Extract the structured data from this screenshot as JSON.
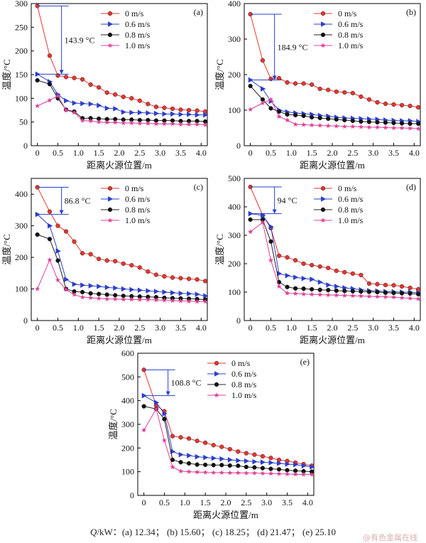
{
  "series_names": [
    "0 m/s",
    "0.6 m/s",
    "0.8 m/s",
    "1.0 m/s"
  ],
  "series_colors": [
    "#e8352f",
    "#2a3fc9",
    "#111111",
    "#e0409a"
  ],
  "series_markers": [
    "circle",
    "triangle",
    "circle",
    "star"
  ],
  "axis_labels": {
    "x": "距离火源位置/m",
    "y": "温度/°C"
  },
  "caption": {
    "q_symbol": "Q",
    "unit_prefix": "/kW：",
    "items": [
      "(a) 12.34；",
      "(b) 15.60；",
      "(c) 18.25；",
      "(d) 21.47；",
      "(e) 25.10"
    ]
  },
  "watermark": "@有色金属在线",
  "x_ticks": [
    0,
    0.5,
    1.0,
    1.5,
    2.0,
    2.5,
    3.0,
    3.5,
    4.0
  ],
  "x_tick_labels": [
    "0",
    "0.5",
    "1.0",
    "1.5",
    "2.0",
    "2.5",
    "3.0",
    "3.5",
    "4.0"
  ],
  "chart_data": [
    {
      "type": "line",
      "id": "a",
      "panel_label": "(a)",
      "annotation": "143.9 °C",
      "annotation_from": 295,
      "annotation_to": 151,
      "ylim": [
        0,
        300
      ],
      "yticks": [
        0,
        50,
        100,
        150,
        200,
        250,
        300
      ],
      "xlim": [
        -0.15,
        4.15
      ],
      "xlabel": "距离火源位置/m",
      "ylabel": "温度/°C",
      "x": [
        0,
        0.3,
        0.5,
        0.7,
        0.9,
        1.1,
        1.3,
        1.5,
        1.7,
        1.9,
        2.1,
        2.3,
        2.5,
        2.7,
        2.9,
        3.1,
        3.3,
        3.5,
        3.7,
        3.9,
        4.1
      ],
      "series": [
        {
          "name": "0 m/s",
          "values": [
            295,
            190,
            148,
            145,
            143,
            140,
            129,
            123,
            112,
            108,
            103,
            100,
            95,
            88,
            82,
            80,
            78,
            76,
            75,
            74,
            72
          ]
        },
        {
          "name": "0.6 m/s",
          "values": [
            151,
            135,
            108,
            95,
            90,
            89,
            88,
            85,
            79,
            78,
            71,
            70,
            70,
            69,
            68,
            67,
            67,
            66,
            66,
            65,
            65
          ]
        },
        {
          "name": "0.8 m/s",
          "values": [
            138,
            130,
            100,
            76,
            72,
            58,
            58,
            57,
            56,
            56,
            55,
            55,
            54,
            54,
            53,
            53,
            53,
            52,
            52,
            52,
            51
          ]
        },
        {
          "name": "1.0 m/s",
          "values": [
            84,
            96,
            105,
            75,
            70,
            53,
            52,
            50,
            49,
            49,
            48,
            48,
            47,
            47,
            46,
            46,
            46,
            45,
            45,
            45,
            44
          ]
        }
      ]
    },
    {
      "type": "line",
      "id": "b",
      "panel_label": "(b)",
      "annotation": "184.9 °C",
      "annotation_from": 370,
      "annotation_to": 185,
      "ylim": [
        0,
        400
      ],
      "yticks": [
        0,
        100,
        200,
        300,
        400
      ],
      "xlim": [
        -0.15,
        4.15
      ],
      "xlabel": "距离火源位置/m",
      "ylabel": "温度/°C",
      "x": [
        0,
        0.3,
        0.5,
        0.7,
        0.9,
        1.1,
        1.3,
        1.5,
        1.7,
        1.9,
        2.1,
        2.3,
        2.5,
        2.7,
        2.9,
        3.1,
        3.3,
        3.5,
        3.7,
        3.9,
        4.1
      ],
      "series": [
        {
          "name": "0 m/s",
          "values": [
            370,
            240,
            188,
            190,
            178,
            175,
            175,
            172,
            160,
            157,
            152,
            150,
            148,
            138,
            130,
            122,
            118,
            116,
            114,
            112,
            108
          ]
        },
        {
          "name": "0.6 m/s",
          "values": [
            185,
            160,
            125,
            100,
            95,
            92,
            90,
            88,
            85,
            83,
            80,
            78,
            77,
            76,
            75,
            74,
            72,
            71,
            70,
            70,
            68
          ]
        },
        {
          "name": "0.8 m/s",
          "values": [
            168,
            130,
            105,
            96,
            88,
            86,
            84,
            80,
            78,
            76,
            74,
            72,
            70,
            68,
            67,
            66,
            65,
            64,
            63,
            62,
            62
          ]
        },
        {
          "name": "1.0 m/s",
          "values": [
            102,
            120,
            130,
            82,
            72,
            60,
            59,
            58,
            57,
            56,
            55,
            54,
            54,
            53,
            52,
            52,
            51,
            50,
            50,
            49,
            48
          ]
        }
      ]
    },
    {
      "type": "line",
      "id": "c",
      "panel_label": "(c)",
      "annotation": "86.8 °C",
      "annotation_from": 422,
      "annotation_to": 336,
      "ylim": [
        0,
        450
      ],
      "yticks": [
        0,
        100,
        200,
        300,
        400
      ],
      "xlim": [
        -0.15,
        4.15
      ],
      "xlabel": "距离火源位置/m",
      "ylabel": "温度/°C",
      "x": [
        0,
        0.3,
        0.5,
        0.7,
        0.9,
        1.1,
        1.3,
        1.5,
        1.7,
        1.9,
        2.1,
        2.3,
        2.5,
        2.7,
        2.9,
        3.1,
        3.3,
        3.5,
        3.7,
        3.9,
        4.1
      ],
      "series": [
        {
          "name": "0 m/s",
          "values": [
            422,
            345,
            300,
            282,
            250,
            213,
            210,
            195,
            190,
            188,
            180,
            175,
            168,
            155,
            145,
            140,
            136,
            134,
            132,
            130,
            125
          ]
        },
        {
          "name": "0.6 m/s",
          "values": [
            336,
            300,
            220,
            130,
            115,
            112,
            110,
            108,
            105,
            103,
            100,
            98,
            96,
            94,
            92,
            90,
            88,
            86,
            85,
            83,
            78
          ]
        },
        {
          "name": "0.8 m/s",
          "values": [
            272,
            258,
            190,
            100,
            92,
            90,
            86,
            84,
            82,
            80,
            78,
            77,
            76,
            75,
            74,
            72,
            71,
            70,
            69,
            68,
            66
          ]
        },
        {
          "name": "1.0 m/s",
          "values": [
            100,
            192,
            128,
            98,
            82,
            74,
            72,
            70,
            68,
            68,
            67,
            67,
            66,
            66,
            65,
            64,
            63,
            62,
            61,
            60,
            60
          ]
        }
      ]
    },
    {
      "type": "line",
      "id": "d",
      "panel_label": "(d)",
      "annotation": "94 °C",
      "annotation_from": 470,
      "annotation_to": 376,
      "ylim": [
        0,
        500
      ],
      "yticks": [
        0,
        100,
        200,
        300,
        400,
        500
      ],
      "xlim": [
        -0.15,
        4.15
      ],
      "xlabel": "距离火源位置/m",
      "ylabel": "温度/°C",
      "x": [
        0,
        0.3,
        0.5,
        0.7,
        0.9,
        1.1,
        1.3,
        1.5,
        1.7,
        1.9,
        2.1,
        2.3,
        2.5,
        2.7,
        2.9,
        3.1,
        3.3,
        3.5,
        3.7,
        3.9,
        4.1
      ],
      "series": [
        {
          "name": "0 m/s",
          "values": [
            470,
            370,
            325,
            228,
            222,
            212,
            200,
            195,
            190,
            185,
            175,
            170,
            165,
            160,
            130,
            128,
            125,
            124,
            120,
            115,
            110
          ]
        },
        {
          "name": "0.6 m/s",
          "values": [
            376,
            370,
            330,
            165,
            158,
            152,
            148,
            145,
            135,
            125,
            120,
            115,
            112,
            108,
            105,
            104,
            102,
            101,
            100,
            100,
            98
          ]
        },
        {
          "name": "0.8 m/s",
          "values": [
            355,
            355,
            278,
            135,
            118,
            113,
            112,
            110,
            108,
            107,
            105,
            104,
            103,
            102,
            101,
            100,
            98,
            97,
            96,
            95,
            93
          ]
        },
        {
          "name": "1.0 m/s",
          "values": [
            312,
            345,
            212,
            120,
            96,
            95,
            93,
            92,
            91,
            90,
            89,
            88,
            87,
            86,
            85,
            84,
            83,
            82,
            80,
            78,
            76
          ]
        }
      ]
    },
    {
      "type": "line",
      "id": "e",
      "panel_label": "(e)",
      "annotation": "108.8 °C",
      "annotation_from": 530,
      "annotation_to": 421,
      "ylim": [
        0,
        600
      ],
      "yticks": [
        0,
        100,
        200,
        300,
        400,
        500,
        600
      ],
      "xlim": [
        -0.15,
        4.15
      ],
      "xlabel": "距离火源位置/m",
      "ylabel": "温度/°C",
      "x": [
        0,
        0.3,
        0.5,
        0.7,
        0.9,
        1.1,
        1.3,
        1.5,
        1.7,
        1.9,
        2.1,
        2.3,
        2.5,
        2.7,
        2.9,
        3.1,
        3.3,
        3.5,
        3.7,
        3.9,
        4.1
      ],
      "series": [
        {
          "name": "0 m/s",
          "values": [
            530,
            380,
            355,
            250,
            245,
            240,
            230,
            222,
            212,
            205,
            195,
            185,
            178,
            172,
            165,
            158,
            150,
            145,
            138,
            132,
            125
          ]
        },
        {
          "name": "0.6 m/s",
          "values": [
            421,
            392,
            345,
            185,
            172,
            168,
            163,
            160,
            157,
            154,
            150,
            147,
            145,
            142,
            140,
            138,
            135,
            132,
            130,
            125,
            120
          ]
        },
        {
          "name": "0.8 m/s",
          "values": [
            376,
            365,
            322,
            150,
            140,
            135,
            130,
            129,
            128,
            128,
            126,
            125,
            120,
            118,
            115,
            112,
            110,
            106,
            104,
            102,
            100
          ]
        },
        {
          "name": "1.0 m/s",
          "values": [
            275,
            365,
            232,
            120,
            102,
            100,
            98,
            97,
            96,
            96,
            95,
            95,
            94,
            94,
            93,
            92,
            91,
            90,
            89,
            88,
            88
          ]
        }
      ]
    }
  ]
}
